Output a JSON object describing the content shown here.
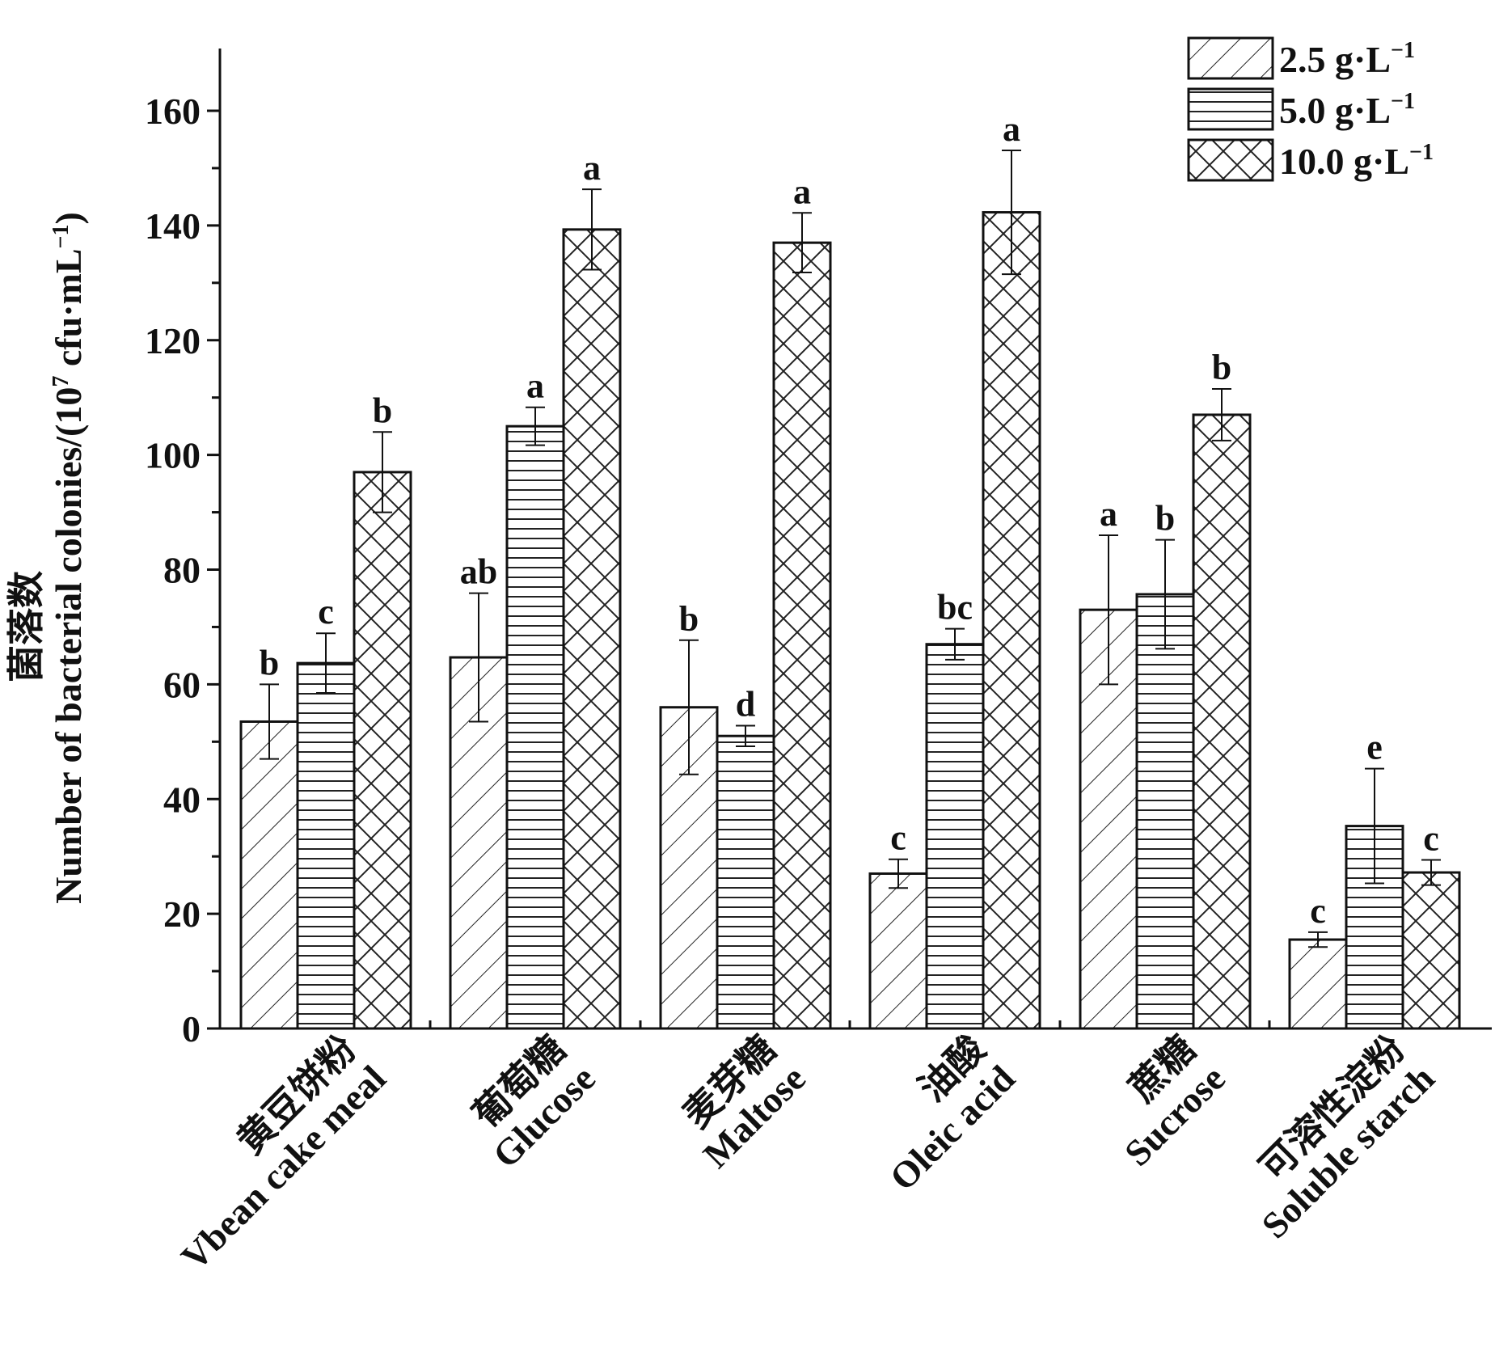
{
  "chart_data": {
    "type": "bar",
    "ylabel_cn": "菌落数",
    "ylabel_en": "Number of bacterial colonies/(10",
    "ylabel_sup": "7",
    "ylabel_mid": " cfu·mL",
    "ylabel_sup2": "−1",
    "ylabel_end": ")",
    "ylim": [
      0,
      170
    ],
    "yticks": [
      0,
      20,
      40,
      60,
      80,
      100,
      120,
      140,
      160
    ],
    "grid": false,
    "legend_position": "top-right",
    "categories": [
      {
        "cn": "黄豆饼粉",
        "en": "Vbean cake meal"
      },
      {
        "cn": "葡萄糖",
        "en": "Glucose"
      },
      {
        "cn": "麦芽糖",
        "en": "Maltose"
      },
      {
        "cn": "油酸",
        "en": "Oleic acid"
      },
      {
        "cn": "蔗糖",
        "en": "Sucrose"
      },
      {
        "cn": "可溶性淀粉",
        "en": "Soluble starch"
      }
    ],
    "series": [
      {
        "name": "2.5 g·L",
        "name_sup": "−1",
        "pattern": "diagonal",
        "values": [
          53.5,
          64.7,
          56,
          27,
          73,
          15.5
        ],
        "errors": [
          6.5,
          11.2,
          11.7,
          2.5,
          13,
          1.3
        ],
        "labels": [
          "b",
          "ab",
          "b",
          "c",
          "a",
          "c"
        ]
      },
      {
        "name": "5.0 g·L",
        "name_sup": "−1",
        "pattern": "horizontal",
        "values": [
          63.7,
          105,
          51,
          67,
          75.7,
          35.3
        ],
        "errors": [
          5.2,
          3.3,
          1.8,
          2.7,
          9.5,
          10
        ],
        "labels": [
          "c",
          "a",
          "d",
          "bc",
          "b",
          "e"
        ]
      },
      {
        "name": "10.0 g·L",
        "name_sup": "−1",
        "pattern": "crosshatch",
        "values": [
          97,
          139.3,
          137,
          142.3,
          107,
          27.2
        ],
        "errors": [
          7,
          7,
          5.2,
          10.8,
          4.5,
          2.2
        ],
        "labels": [
          "b",
          "a",
          "a",
          "a",
          "b",
          "c"
        ]
      }
    ]
  }
}
